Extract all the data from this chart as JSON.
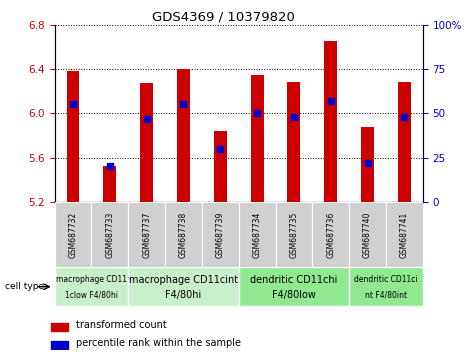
{
  "title": "GDS4369 / 10379820",
  "samples": [
    "GSM687732",
    "GSM687733",
    "GSM687737",
    "GSM687738",
    "GSM687739",
    "GSM687734",
    "GSM687735",
    "GSM687736",
    "GSM687740",
    "GSM687741"
  ],
  "transformed_count": [
    6.38,
    5.52,
    6.27,
    6.4,
    5.84,
    6.35,
    6.28,
    6.65,
    5.88,
    6.28
  ],
  "percentile_rank": [
    55,
    20,
    47,
    55,
    30,
    50,
    48,
    57,
    22,
    48
  ],
  "ylim_left": [
    5.2,
    6.8
  ],
  "ylim_right": [
    0,
    100
  ],
  "yticks_left": [
    5.2,
    5.6,
    6.0,
    6.4,
    6.8
  ],
  "yticks_right": [
    0,
    25,
    50,
    75,
    100
  ],
  "bar_color": "#cc0000",
  "dot_color": "#0000cc",
  "bar_bottom": 5.2,
  "cell_type_groups": [
    {
      "label": "macrophage CD11\n1clow F4/80hi",
      "start": 0,
      "end": 2,
      "color": "#c8f0c8"
    },
    {
      "label": "macrophage CD11cint\nF4/80hi",
      "start": 2,
      "end": 5,
      "color": "#c8f0c8"
    },
    {
      "label": "dendritic CD11chi\nF4/80low",
      "start": 5,
      "end": 8,
      "color": "#90e890"
    },
    {
      "label": "dendritic CD11ci\nnt F4/80int",
      "start": 8,
      "end": 10,
      "color": "#90e890"
    }
  ],
  "legend_red_label": "transformed count",
  "legend_blue_label": "percentile rank within the sample",
  "cell_type_label": "cell type",
  "sample_box_color": "#d0d0d0",
  "plot_bg_color": "#ffffff",
  "tick_label_color_left": "#cc0000",
  "tick_label_color_right": "#0000cc"
}
